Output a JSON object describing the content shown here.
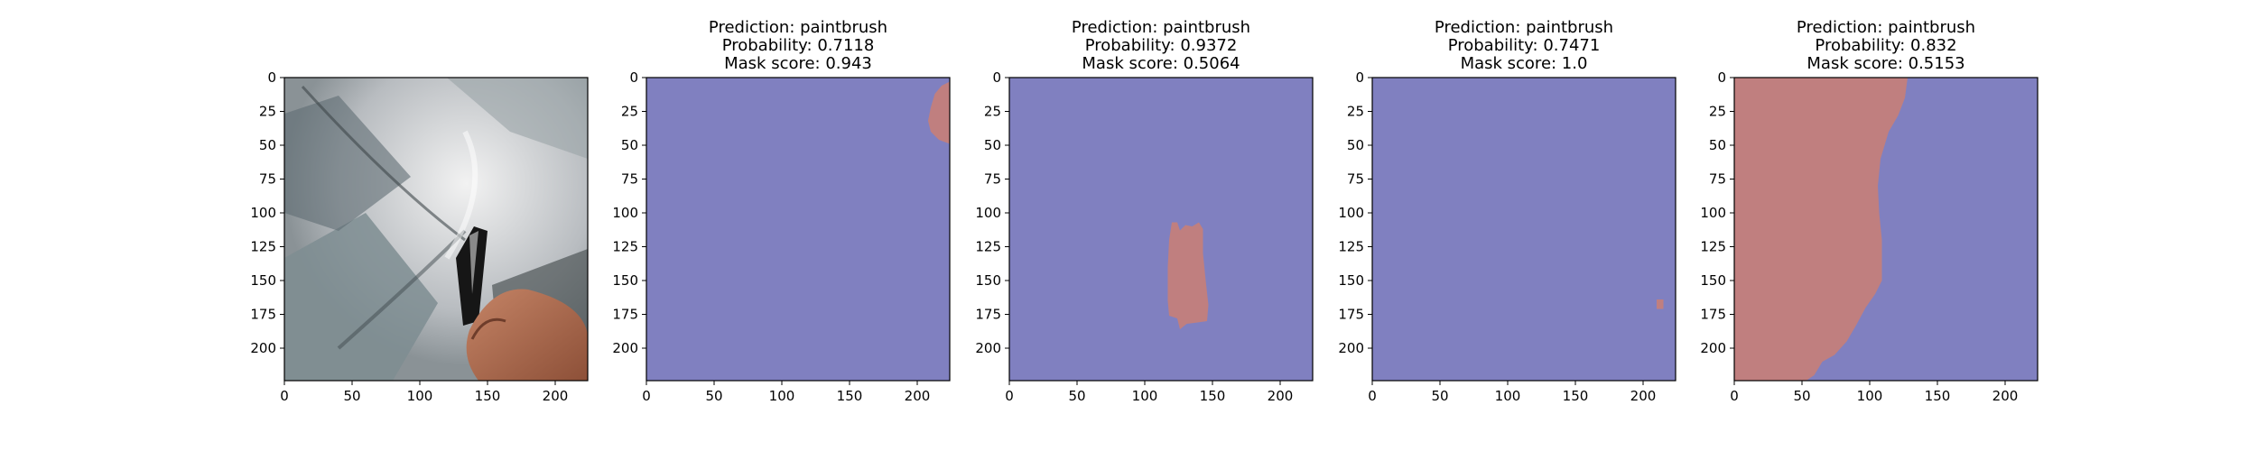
{
  "colors": {
    "mask_background": "#8080c0",
    "mask_foreground": "#c07f7f",
    "axis": "#000000"
  },
  "chart_data": [
    {
      "type": "image",
      "title_lines": [],
      "content": "photo",
      "x_ticks": [
        "0",
        "50",
        "100",
        "150",
        "200"
      ],
      "y_ticks": [
        "0",
        "25",
        "50",
        "75",
        "100",
        "125",
        "150",
        "175",
        "200"
      ],
      "xlim": [
        0,
        224
      ],
      "ylim": [
        224,
        0
      ]
    },
    {
      "type": "heatmap",
      "title_lines": [
        "Prediction: paintbrush",
        "Probability: 0.7118",
        "Mask score: 0.943"
      ],
      "prediction": "paintbrush",
      "probability": 0.7118,
      "mask_score": 0.943,
      "x_ticks": [
        "0",
        "50",
        "100",
        "150",
        "200"
      ],
      "y_ticks": [
        "0",
        "25",
        "50",
        "75",
        "100",
        "125",
        "150",
        "175",
        "200"
      ],
      "xlim": [
        0,
        224
      ],
      "ylim": [
        224,
        0
      ],
      "mask_regions": [
        [
          [
            224,
            3
          ],
          [
            218,
            6
          ],
          [
            213,
            12
          ],
          [
            210,
            22
          ],
          [
            208,
            32
          ],
          [
            210,
            40
          ],
          [
            216,
            46
          ],
          [
            224,
            49
          ]
        ]
      ]
    },
    {
      "type": "heatmap",
      "title_lines": [
        "Prediction: paintbrush",
        "Probability: 0.9372",
        "Mask score: 0.5064"
      ],
      "prediction": "paintbrush",
      "probability": 0.9372,
      "mask_score": 0.5064,
      "x_ticks": [
        "0",
        "50",
        "100",
        "150",
        "200"
      ],
      "y_ticks": [
        "0",
        "25",
        "50",
        "75",
        "100",
        "125",
        "150",
        "175",
        "200"
      ],
      "xlim": [
        0,
        224
      ],
      "ylim": [
        224,
        0
      ],
      "mask_regions": [
        [
          [
            120,
            107
          ],
          [
            124,
            107
          ],
          [
            126,
            113
          ],
          [
            130,
            109
          ],
          [
            135,
            110
          ],
          [
            140,
            107
          ],
          [
            143,
            112
          ],
          [
            143,
            130
          ],
          [
            145,
            150
          ],
          [
            147,
            168
          ],
          [
            146,
            180
          ],
          [
            139,
            181
          ],
          [
            131,
            182
          ],
          [
            126,
            186
          ],
          [
            124,
            178
          ],
          [
            118,
            176
          ],
          [
            117,
            165
          ],
          [
            117,
            140
          ],
          [
            118,
            120
          ]
        ]
      ]
    },
    {
      "type": "heatmap",
      "title_lines": [
        "Prediction: paintbrush",
        "Probability: 0.7471",
        "Mask score: 1.0"
      ],
      "prediction": "paintbrush",
      "probability": 0.7471,
      "mask_score": 1.0,
      "x_ticks": [
        "0",
        "50",
        "100",
        "150",
        "200"
      ],
      "y_ticks": [
        "0",
        "25",
        "50",
        "75",
        "100",
        "125",
        "150",
        "175",
        "200"
      ],
      "xlim": [
        0,
        224
      ],
      "ylim": [
        224,
        0
      ],
      "mask_regions": [
        [
          [
            210,
            164
          ],
          [
            215,
            164
          ],
          [
            215,
            171
          ],
          [
            210,
            171
          ]
        ]
      ]
    },
    {
      "type": "heatmap",
      "title_lines": [
        "Prediction: paintbrush",
        "Probability: 0.832",
        "Mask score: 0.5153"
      ],
      "prediction": "paintbrush",
      "probability": 0.832,
      "mask_score": 0.5153,
      "x_ticks": [
        "0",
        "50",
        "100",
        "150",
        "200"
      ],
      "y_ticks": [
        "0",
        "25",
        "50",
        "75",
        "100",
        "125",
        "150",
        "175",
        "200"
      ],
      "xlim": [
        0,
        224
      ],
      "ylim": [
        224,
        0
      ],
      "mask_regions": [
        [
          [
            0,
            0
          ],
          [
            128,
            0
          ],
          [
            126,
            15
          ],
          [
            121,
            28
          ],
          [
            114,
            40
          ],
          [
            108,
            60
          ],
          [
            106,
            80
          ],
          [
            107,
            100
          ],
          [
            109,
            120
          ],
          [
            109,
            150
          ],
          [
            104,
            160
          ],
          [
            97,
            170
          ],
          [
            90,
            183
          ],
          [
            83,
            195
          ],
          [
            74,
            205
          ],
          [
            65,
            210
          ],
          [
            59,
            220
          ],
          [
            53,
            224
          ],
          [
            0,
            224
          ]
        ]
      ]
    }
  ]
}
